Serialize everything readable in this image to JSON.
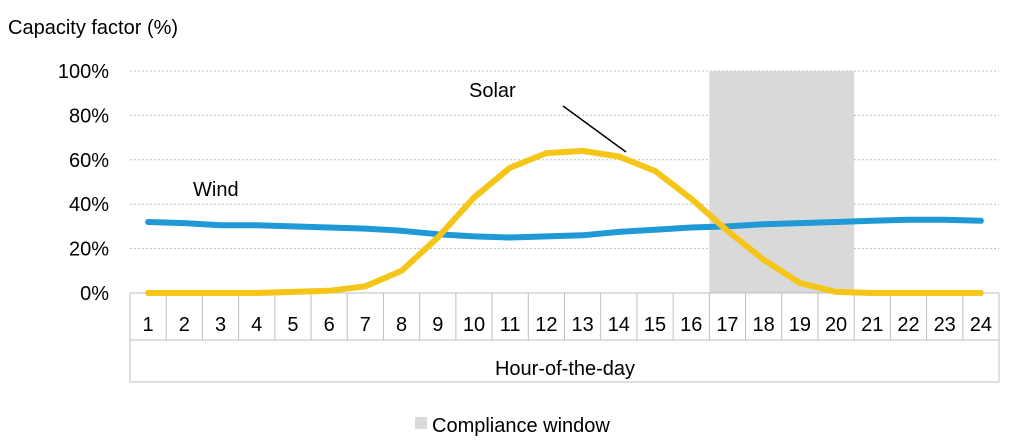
{
  "chart_data": {
    "type": "line",
    "ylabel": "Capacity factor (%)",
    "xlabel": "Hour-of-the-day",
    "ylim": [
      0,
      100
    ],
    "yticks": [
      "0%",
      "20%",
      "40%",
      "60%",
      "80%",
      "100%"
    ],
    "categories": [
      "1",
      "2",
      "3",
      "4",
      "5",
      "6",
      "7",
      "8",
      "9",
      "10",
      "11",
      "12",
      "13",
      "14",
      "15",
      "16",
      "17",
      "18",
      "19",
      "20",
      "21",
      "22",
      "23",
      "24"
    ],
    "grid": true,
    "series": [
      {
        "name": "Wind",
        "color": "#1f9ad6",
        "values": [
          32,
          31.5,
          30.5,
          30.5,
          30,
          29.5,
          29,
          28,
          26.5,
          25.5,
          25,
          25.5,
          26,
          27.5,
          28.5,
          29.5,
          30,
          31,
          31.5,
          32,
          32.5,
          33,
          33,
          32.5
        ]
      },
      {
        "name": "Solar",
        "color": "#f5c518",
        "values": [
          0,
          0,
          0,
          0,
          0.5,
          1,
          3,
          10,
          25,
          43,
          56.5,
          63,
          64,
          61.5,
          55,
          42.5,
          28,
          15,
          4.5,
          0.5,
          0,
          0,
          0,
          0
        ]
      }
    ],
    "shaded_region": {
      "label": "Compliance window",
      "from_hour": 17,
      "to_hour": 20,
      "color": "#d9d9d9"
    },
    "legend": {
      "label": "Compliance window",
      "placement": "bottom"
    }
  }
}
